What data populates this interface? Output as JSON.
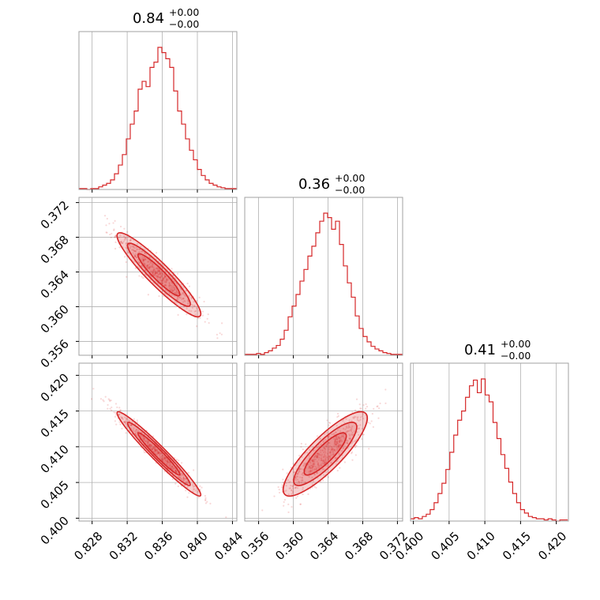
{
  "colors": {
    "accent": "#d62728",
    "grid": "#b0b0b0",
    "frame": "#a0a0a0"
  },
  "chart_data": {
    "type": "corner",
    "parameters": [
      {
        "range": [
          0.8265,
          0.8445
        ],
        "ticks": [
          0.828,
          0.832,
          0.836,
          0.84,
          0.844
        ],
        "tick_labels": [
          "0.828",
          "0.832",
          "0.836",
          "0.840",
          "0.844"
        ],
        "title": {
          "main": "0.84",
          "sup": "+0.00",
          "sub": "−0.00"
        }
      },
      {
        "range": [
          0.3544,
          0.3726
        ],
        "ticks": [
          0.356,
          0.36,
          0.364,
          0.368,
          0.372
        ],
        "tick_labels": [
          "0.356",
          "0.360",
          "0.364",
          "0.368",
          "0.372"
        ],
        "title": {
          "main": "0.36",
          "sup": "+0.00",
          "sub": "−0.00"
        }
      },
      {
        "range": [
          0.3996,
          0.4217
        ],
        "ticks": [
          0.4,
          0.405,
          0.41,
          0.415,
          0.42
        ],
        "tick_labels": [
          "0.400",
          "0.405",
          "0.410",
          "0.415",
          "0.420"
        ],
        "title": {
          "main": "0.41",
          "sup": "+0.00",
          "sub": "−0.00"
        }
      }
    ],
    "histograms": [
      {
        "param": 0,
        "bin_start": 0.8265,
        "bin_width": 0.00045,
        "counts": [
          1,
          1,
          0,
          1,
          1,
          3,
          5,
          7,
          11,
          18,
          28,
          40,
          58,
          75,
          90,
          115,
          124,
          118,
          140,
          146,
          163,
          157,
          150,
          140,
          113,
          90,
          75,
          58,
          45,
          34,
          23,
          16,
          11,
          7,
          5,
          3,
          2,
          1,
          1,
          1
        ]
      },
      {
        "param": 1,
        "bin_start": 0.3544,
        "bin_width": 0.000455,
        "counts": [
          1,
          1,
          1,
          2,
          1,
          3,
          5,
          8,
          11,
          18,
          28,
          43,
          55,
          68,
          83,
          96,
          111,
          122,
          137,
          150,
          159,
          154,
          141,
          150,
          124,
          100,
          81,
          65,
          44,
          30,
          21,
          15,
          10,
          7,
          5,
          3,
          2,
          1,
          1,
          1
        ]
      },
      {
        "param": 2,
        "bin_start": 0.3996,
        "bin_width": 0.00055,
        "counts": [
          2,
          3,
          2,
          4,
          6,
          10,
          16,
          24,
          33,
          45,
          60,
          75,
          88,
          96,
          108,
          118,
          123,
          112,
          124,
          110,
          104,
          86,
          72,
          58,
          46,
          34,
          24,
          16,
          10,
          7,
          4,
          3,
          2,
          2,
          1,
          2,
          1,
          0,
          1,
          1
        ]
      }
    ],
    "pairs": [
      {
        "x_param": 0,
        "y_param": 1,
        "correlation": -0.93
      },
      {
        "x_param": 0,
        "y_param": 2,
        "correlation": -0.97
      },
      {
        "x_param": 1,
        "y_param": 2,
        "correlation": 0.85
      }
    ],
    "contour_levels": 3,
    "grid": true
  }
}
